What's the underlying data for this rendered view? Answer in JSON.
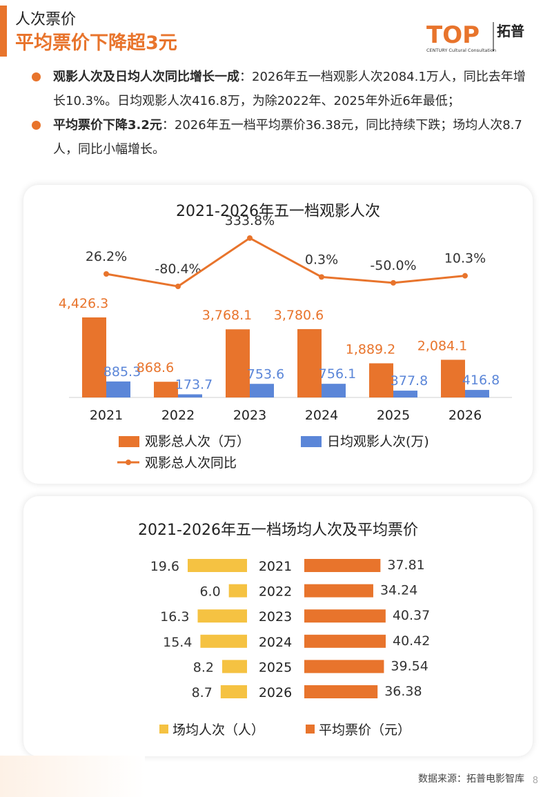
{
  "header": {
    "section": "人次票价",
    "headline": "平均票价下降超3元",
    "logo_text": "TOP",
    "logo_sub": "CENTURY Cultural Consultation",
    "logo_brand": "拓普"
  },
  "bullets": [
    {
      "bold": "观影人次及日均人次同比增长一成",
      "text": "：2026年五一档观影人次2084.1万人，同比去年增长10.3%。日均观影人次416.8万，为除2022年、2025年外近6年最低；"
    },
    {
      "bold": "平均票价下降3.2元",
      "text": "：2026年五一档平均票价36.38元，同比持续下跌；场均人次8.7人，同比小幅增长。"
    }
  ],
  "colors": {
    "accent": "#e8742c",
    "blue": "#5b86d8",
    "yellow": "#f5c242"
  },
  "chart_data": [
    {
      "type": "bar",
      "title": "2021-2026年五一档观影人次",
      "categories": [
        "2021",
        "2022",
        "2023",
        "2024",
        "2025",
        "2026"
      ],
      "series": [
        {
          "name": "观影总人次（万）",
          "type": "bar",
          "values": [
            4426.3,
            868.6,
            3768.1,
            3780.6,
            1889.2,
            2084.1
          ],
          "labels": [
            "4,426.3",
            "868.6",
            "3,768.1",
            "3,780.6",
            "1,889.2",
            "2,084.1"
          ]
        },
        {
          "name": "日均观影人次(万)",
          "type": "bar",
          "values": [
            885.3,
            173.7,
            753.6,
            756.1,
            377.8,
            416.8
          ],
          "labels": [
            "885.3",
            "173.7",
            "753.6",
            "756.1",
            "377.8",
            "416.8"
          ]
        },
        {
          "name": "观影总人次同比",
          "type": "line",
          "values": [
            26.2,
            -80.4,
            333.8,
            0.3,
            -50.0,
            10.3
          ],
          "labels": [
            "26.2%",
            "-80.4%",
            "333.8%",
            "0.3%",
            "-50.0%",
            "10.3%"
          ]
        }
      ],
      "legend": "bottom"
    },
    {
      "type": "bar",
      "title": "2021-2026年五一档场均人次及平均票价",
      "categories": [
        "2021",
        "2022",
        "2023",
        "2024",
        "2025",
        "2026"
      ],
      "series": [
        {
          "name": "场均人次（人）",
          "values": [
            19.6,
            6.0,
            16.3,
            15.4,
            8.2,
            8.7
          ],
          "labels": [
            "19.6",
            "6.0",
            "16.3",
            "15.4",
            "8.2",
            "8.7"
          ]
        },
        {
          "name": "平均票价（元）",
          "values": [
            37.81,
            34.24,
            40.37,
            40.42,
            39.54,
            36.38
          ],
          "labels": [
            "37.81",
            "34.24",
            "40.37",
            "40.42",
            "39.54",
            "36.38"
          ]
        }
      ],
      "orientation": "horizontal-butterfly",
      "legend": "bottom"
    }
  ],
  "footer": {
    "source": "数据来源：拓普电影智库",
    "page": "8"
  }
}
